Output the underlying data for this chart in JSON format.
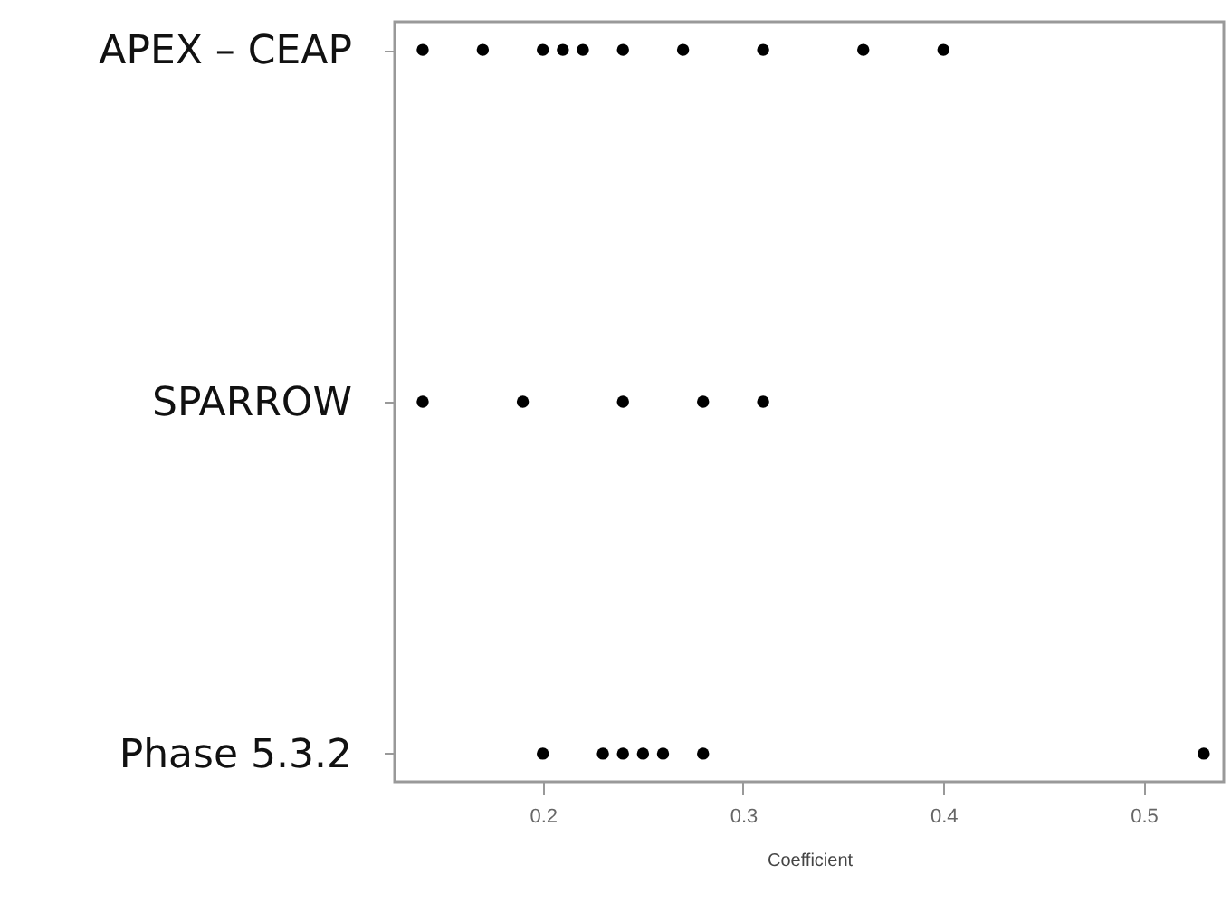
{
  "chart_data": {
    "type": "scatter",
    "orientation": "horizontal",
    "xlabel": "Coefficient",
    "categories": [
      "APEX – CEAP",
      "SPARROW",
      "Phase 5.3.2"
    ],
    "series": [
      {
        "color": "#000000",
        "x": [
          "APEX – CEAP",
          "APEX – CEAP",
          "APEX – CEAP",
          "APEX – CEAP",
          "APEX – CEAP",
          "APEX – CEAP",
          "APEX – CEAP",
          "APEX – CEAP",
          "APEX – CEAP",
          "APEX – CEAP",
          "SPARROW",
          "SPARROW",
          "SPARROW",
          "SPARROW",
          "SPARROW",
          "Phase 5.3.2",
          "Phase 5.3.2",
          "Phase 5.3.2",
          "Phase 5.3.2",
          "Phase 5.3.2",
          "Phase 5.3.2",
          "Phase 5.3.2"
        ],
        "values": [
          0.14,
          0.17,
          0.2,
          0.21,
          0.22,
          0.24,
          0.27,
          0.31,
          0.36,
          0.4,
          0.14,
          0.19,
          0.24,
          0.28,
          0.31,
          0.2,
          0.23,
          0.24,
          0.25,
          0.26,
          0.28,
          0.53
        ]
      }
    ],
    "xlim": [
      0.126,
      0.54
    ],
    "xticks": [
      0.2,
      0.3,
      0.4,
      0.5
    ],
    "grid": false,
    "marker": "circle"
  }
}
